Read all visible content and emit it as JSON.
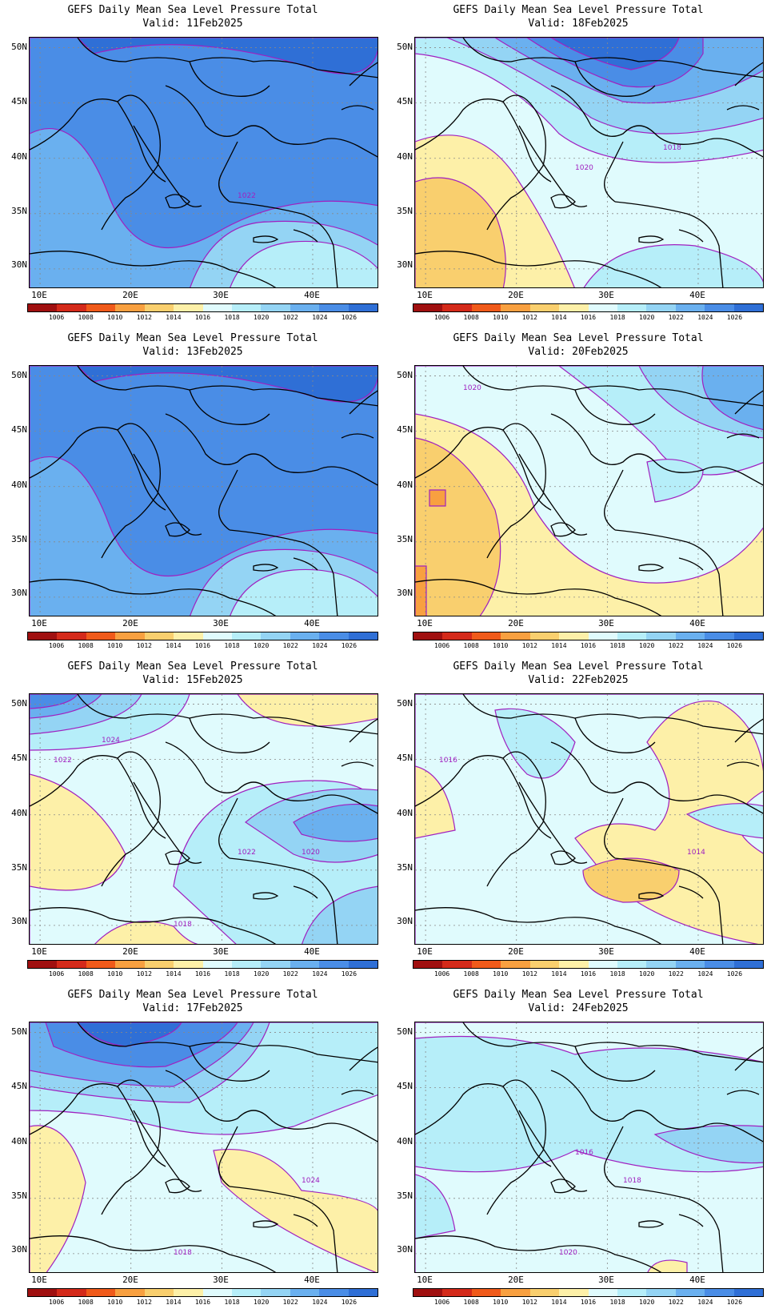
{
  "panels": [
    {
      "title": "GEFS Daily Mean Sea Level Pressure Total",
      "valid": "Valid: 11Feb2025",
      "scheme": "high",
      "contour_labels": [
        "1022"
      ]
    },
    {
      "title": "GEFS Daily Mean Sea Level Pressure Total",
      "valid": "Valid: 18Feb2025",
      "scheme": "mid-south-low",
      "contour_labels": [
        "1020",
        "1018"
      ]
    },
    {
      "title": "GEFS Daily Mean Sea Level Pressure Total",
      "valid": "Valid: 13Feb2025",
      "scheme": "high",
      "contour_labels": []
    },
    {
      "title": "GEFS Daily Mean Sea Level Pressure Total",
      "valid": "Valid: 20Feb2025",
      "scheme": "west-low",
      "contour_labels": [
        "1020"
      ]
    },
    {
      "title": "GEFS Daily Mean Sea Level Pressure Total",
      "valid": "Valid: 15Feb2025",
      "scheme": "mixed",
      "contour_labels": [
        "1024",
        "1022",
        "1020",
        "1018",
        "1022"
      ]
    },
    {
      "title": "GEFS Daily Mean Sea Level Pressure Total",
      "valid": "Valid: 22Feb2025",
      "scheme": "east-low",
      "contour_labels": [
        "1016",
        "1014"
      ]
    },
    {
      "title": "GEFS Daily Mean Sea Level Pressure Total",
      "valid": "Valid: 17Feb2025",
      "scheme": "north-high",
      "contour_labels": [
        "1024",
        "1018"
      ]
    },
    {
      "title": "GEFS Daily Mean Sea Level Pressure Total",
      "valid": "Valid: 24Feb2025",
      "scheme": "flat",
      "contour_labels": [
        "1020",
        "1018",
        "1016"
      ]
    }
  ],
  "lat_labels": [
    "50N",
    "45N",
    "40N",
    "35N",
    "30N"
  ],
  "lon_labels": [
    "10E",
    "20E",
    "30E",
    "40E"
  ],
  "colorbar": {
    "labels": [
      "1006",
      "1008",
      "1010",
      "1012",
      "1014",
      "1016",
      "1018",
      "1020",
      "1022",
      "1024",
      "1026"
    ],
    "colors": [
      "#a01010",
      "#d42a1a",
      "#f05a1a",
      "#f8a040",
      "#f9cf6e",
      "#fdf0a8",
      "#e0fbfd",
      "#b6eef9",
      "#94d4f4",
      "#6ab0ef",
      "#4a8de6",
      "#2f6fd6"
    ]
  },
  "contour_color": "#a020c0"
}
